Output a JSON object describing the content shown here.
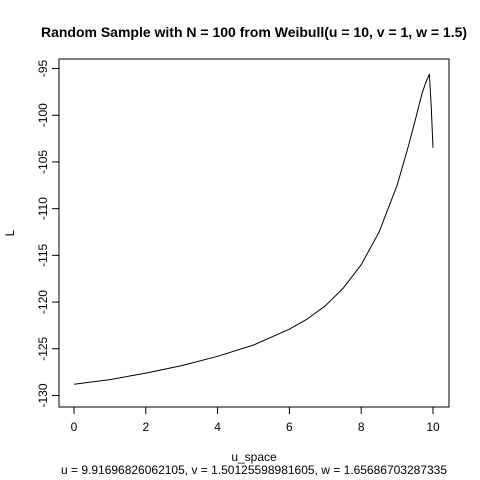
{
  "chart_data": {
    "type": "line",
    "title": "Random Sample with N = 100 from Weibull(u = 10, v = 1, w = 1.5)",
    "xlabel": "u_space",
    "ylabel": "L",
    "subtitle": "u = 9.91696826062105, v = 1.50125598981605, w = 1.65686703287335",
    "xlim": [
      0,
      10
    ],
    "ylim": [
      -130,
      -95
    ],
    "x_ticks": [
      {
        "value": 0,
        "label": "0"
      },
      {
        "value": 2,
        "label": "2"
      },
      {
        "value": 4,
        "label": "4"
      },
      {
        "value": 6,
        "label": "6"
      },
      {
        "value": 8,
        "label": "8"
      },
      {
        "value": 10,
        "label": "10"
      }
    ],
    "y_ticks": [
      {
        "value": -95,
        "label": "-95"
      },
      {
        "value": -100,
        "label": "-100"
      },
      {
        "value": -105,
        "label": "-105"
      },
      {
        "value": -110,
        "label": "-110"
      },
      {
        "value": -115,
        "label": "-115"
      },
      {
        "value": -120,
        "label": "-120"
      },
      {
        "value": -125,
        "label": "-125"
      },
      {
        "value": -130,
        "label": "-130"
      }
    ],
    "grid": false,
    "series": [
      {
        "color": "#000000",
        "x": [
          0,
          1,
          2,
          3,
          4,
          5,
          6,
          6.5,
          7,
          7.5,
          8,
          8.5,
          9,
          9.3,
          9.5,
          9.7,
          9.8,
          9.9,
          9.95,
          10.0
        ],
        "y": [
          -128.8,
          -128.3,
          -127.6,
          -126.8,
          -125.8,
          -124.6,
          -122.9,
          -121.8,
          -120.4,
          -118.5,
          -116.0,
          -112.5,
          -107.5,
          -103.5,
          -100.6,
          -97.6,
          -96.5,
          -95.6,
          -99.0,
          -103.5
        ]
      }
    ]
  }
}
